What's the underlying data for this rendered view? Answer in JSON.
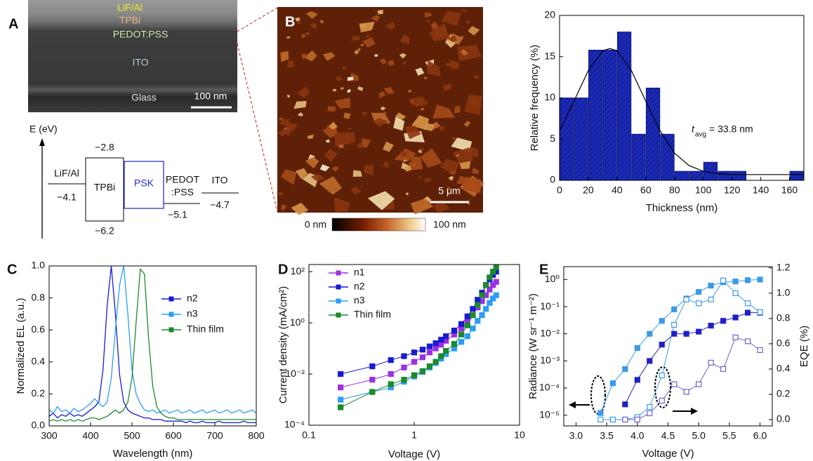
{
  "panel_labels": [
    "A",
    "B",
    "C",
    "D",
    "E"
  ],
  "panel_a": {
    "sem_layers": [
      "LiF/Al",
      "TPBi",
      "PEDOT:PSS",
      "ITO",
      "Glass"
    ],
    "scale_bar": "100 nm",
    "energy_diagram": {
      "axis_label": "E (eV)",
      "lif_al": "LiF/Al",
      "lif_al_level": "−4.1",
      "tpbi": "TPBi",
      "tpbi_lumo": "−2.8",
      "tpbi_homo": "−6.2",
      "psk": "PSK",
      "pedot_1": "PEDOT",
      "pedot_2": ":PSS",
      "pedot_level": "−5.1",
      "ito": "ITO",
      "ito_level": "−4.7"
    }
  },
  "panel_b": {
    "scale_bar": "5 μm",
    "colorbar_min": "0 nm",
    "colorbar_max": "100 nm"
  },
  "chart_data": [
    {
      "type": "histogram",
      "ylabel": "Relative frequency (%)",
      "xlabel": "Thickness (nm)",
      "bins": [
        0,
        10,
        20,
        30,
        40,
        50,
        60,
        70,
        80,
        90,
        100,
        110,
        120,
        130,
        140,
        150,
        160,
        170
      ],
      "values": [
        10,
        10,
        15.8,
        15.8,
        18,
        5.6,
        11.2,
        5.6,
        1.1,
        1.1,
        2.2,
        1.1,
        1.1,
        0,
        0,
        0,
        1.1
      ],
      "color": "#1c2ab8",
      "hatch": true,
      "xlim": [
        0,
        170
      ],
      "xticks": [
        0,
        20,
        40,
        60,
        80,
        100,
        120,
        140,
        160
      ],
      "ylim": [
        0,
        20
      ],
      "yticks": [
        0,
        5,
        10,
        15,
        20
      ],
      "fit": {
        "x": [
          0,
          10,
          20,
          30,
          35,
          40,
          50,
          60,
          70,
          80,
          90,
          100,
          110,
          120,
          130,
          140,
          150,
          160,
          170
        ],
        "values": [
          6.0,
          9.6,
          13.3,
          15.7,
          16.0,
          15.7,
          13.3,
          9.6,
          6.0,
          3.3,
          1.8,
          1.1,
          0.8,
          0.7,
          0.7,
          0.7,
          0.7,
          0.7,
          0.7
        ],
        "color": "#000000"
      },
      "annotation": {
        "symbol": "t",
        "subscript": "avg",
        "text": "= 33.8 nm"
      }
    },
    {
      "type": "line",
      "ylabel": "Normalized EL (a.u.)",
      "xlabel": "Wavelength (nm)",
      "x": [
        300,
        310,
        320,
        330,
        340,
        350,
        360,
        370,
        380,
        390,
        400,
        410,
        420,
        430,
        440,
        450,
        460,
        470,
        480,
        490,
        500,
        510,
        520,
        530,
        540,
        550,
        560,
        570,
        580,
        590,
        600,
        610,
        620,
        630,
        640,
        650,
        660,
        670,
        680,
        690,
        700,
        710,
        720,
        730,
        740,
        750,
        760,
        770,
        780,
        790,
        800
      ],
      "series": [
        {
          "name": "n2",
          "color": "#1a1ad0",
          "values": [
            0.06,
            0.08,
            0.05,
            0.07,
            0.06,
            0.08,
            0.06,
            0.07,
            0.06,
            0.08,
            0.1,
            0.12,
            0.15,
            0.35,
            0.75,
            1.0,
            0.7,
            0.32,
            0.15,
            0.1,
            0.08,
            0.07,
            0.06,
            0.05,
            0.05,
            0.04,
            0.04,
            0.04,
            0.03,
            0.03,
            0.03,
            0.03,
            0.03,
            0.02,
            0.03,
            0.02,
            0.02,
            0.03,
            0.02,
            0.02,
            0.02,
            0.03,
            0.02,
            0.02,
            0.02,
            0.02,
            0.02,
            0.03,
            0.02,
            0.02,
            0.02
          ]
        },
        {
          "name": "n3",
          "color": "#2a9df4",
          "values": [
            0.1,
            0.08,
            0.12,
            0.09,
            0.1,
            0.08,
            0.11,
            0.09,
            0.1,
            0.12,
            0.14,
            0.17,
            0.14,
            0.12,
            0.15,
            0.3,
            0.6,
            0.88,
            1.0,
            0.7,
            0.35,
            0.2,
            0.14,
            0.1,
            0.09,
            0.1,
            0.08,
            0.09,
            0.1,
            0.08,
            0.09,
            0.1,
            0.08,
            0.09,
            0.1,
            0.08,
            0.09,
            0.1,
            0.08,
            0.09,
            0.1,
            0.08,
            0.09,
            0.1,
            0.08,
            0.09,
            0.1,
            0.08,
            0.09,
            0.1,
            0.08
          ]
        },
        {
          "name": "Thin film",
          "color": "#1a8a2a",
          "values": [
            0.03,
            0.04,
            0.03,
            0.04,
            0.03,
            0.04,
            0.03,
            0.04,
            0.03,
            0.04,
            0.05,
            0.05,
            0.04,
            0.05,
            0.06,
            0.08,
            0.1,
            0.08,
            0.1,
            0.15,
            0.3,
            0.65,
            0.98,
            0.95,
            0.55,
            0.25,
            0.12,
            0.08,
            0.06,
            0.05,
            0.05,
            0.04,
            0.04,
            0.04,
            0.04,
            0.04,
            0.04,
            0.04,
            0.04,
            0.04,
            0.04,
            0.04,
            0.04,
            0.04,
            0.04,
            0.04,
            0.04,
            0.04,
            0.04,
            0.04,
            0.04
          ]
        }
      ],
      "xlim": [
        300,
        800
      ],
      "xticks": [
        300,
        400,
        500,
        600,
        700,
        800
      ],
      "ylim": [
        0,
        1
      ],
      "yticks": [
        {
          "value": 0,
          "label": "0.0"
        },
        0.2,
        0.4,
        0.6,
        0.8,
        {
          "value": 1,
          "label": "1.0"
        }
      ],
      "legend": "upper right"
    },
    {
      "type": "line",
      "ylabel": "Current density (mA/cm²)",
      "xlabel": "Voltage (V)",
      "xscale": "log",
      "yscale": "log",
      "marker": "square",
      "x": [
        0.2,
        0.4,
        0.6,
        0.8,
        1,
        1.2,
        1.4,
        1.6,
        1.8,
        2,
        2.4,
        2.8,
        3.2,
        3.6,
        4,
        4.4,
        4.8,
        5.2,
        5.6,
        6
      ],
      "series": [
        {
          "name": "n1",
          "color": "#9b30e0",
          "values": [
            0.003,
            0.006,
            0.01,
            0.018,
            0.03,
            0.045,
            0.07,
            0.1,
            0.14,
            0.2,
            0.35,
            0.6,
            1.1,
            2,
            4,
            7,
            12,
            20,
            30,
            40
          ]
        },
        {
          "name": "n2",
          "color": "#1a1ad0",
          "values": [
            0.01,
            0.02,
            0.035,
            0.05,
            0.07,
            0.09,
            0.12,
            0.16,
            0.22,
            0.3,
            0.5,
            0.9,
            1.8,
            3.5,
            8,
            15,
            30,
            50,
            75,
            100
          ]
        },
        {
          "name": "n3",
          "color": "#2a9df4",
          "values": [
            0.001,
            0.002,
            0.003,
            0.005,
            0.008,
            0.012,
            0.018,
            0.027,
            0.04,
            0.06,
            0.1,
            0.18,
            0.3,
            0.6,
            1.2,
            2,
            3.5,
            6,
            9,
            12
          ]
        },
        {
          "name": "Thin film",
          "color": "#1a8a2a",
          "values": [
            0.0005,
            0.002,
            0.004,
            0.006,
            0.009,
            0.013,
            0.02,
            0.03,
            0.05,
            0.08,
            0.15,
            0.35,
            0.8,
            2,
            5,
            12,
            30,
            60,
            100,
            150
          ]
        }
      ],
      "xlim": [
        0.1,
        10
      ],
      "xticks": [
        0.1,
        1,
        10
      ],
      "ylim": [
        0.0001,
        190
      ],
      "yticks": [
        {
          "value": 0.0001,
          "label": "10⁻⁴"
        },
        {
          "value": 0.01,
          "label": "10⁻²"
        },
        {
          "value": 1,
          "label": "10⁰"
        },
        {
          "value": 100,
          "label": "10²"
        }
      ],
      "legend": "upper left"
    },
    {
      "type": "line",
      "ylabel": "Radiance (W sr⁻¹ m⁻²)",
      "y2label": "EQE (%)",
      "xlabel": "Voltage (V)",
      "yscale": "log",
      "marker": "square",
      "x": [
        3.4,
        3.6,
        3.8,
        4.0,
        4.2,
        4.4,
        4.6,
        4.8,
        5.0,
        5.2,
        5.4,
        5.6,
        5.8,
        6.0
      ],
      "series": [
        {
          "color": "#3a9ae8",
          "filled": true,
          "values": [
            1.2e-05,
            0.00015,
            0.0005,
            0.003,
            0.01,
            0.03,
            0.08,
            0.2,
            0.35,
            0.6,
            0.8,
            0.85,
            0.95,
            1.0
          ]
        },
        {
          "color": "#2020c8",
          "filled": true,
          "values": [
            null,
            null,
            2.5e-05,
            0.0002,
            0.001,
            0.004,
            0.01,
            0.01,
            0.012,
            0.02,
            0.03,
            0.04,
            0.06,
            0.06
          ]
        },
        {
          "color": "#3a9ae8",
          "filled": false,
          "axis": "y2",
          "values": [
            0,
            0,
            0,
            0.02,
            0.1,
            0.35,
            0.75,
            0.95,
            0.92,
            0.95,
            1.1,
            1.0,
            0.92,
            0.85
          ]
        },
        {
          "color": "#7060d0",
          "filled": false,
          "axis": "y2",
          "values": [
            null,
            null,
            0,
            0,
            0.05,
            0.15,
            0.28,
            0.22,
            0.28,
            0.45,
            0.4,
            0.65,
            0.62,
            0.55
          ]
        }
      ],
      "xlim": [
        2.8,
        6.2
      ],
      "xticks": [
        {
          "value": 3,
          "label": "3.0"
        },
        3.5,
        {
          "value": 4,
          "label": "4.0"
        },
        4.5,
        {
          "value": 5,
          "label": "5.0"
        },
        5.5,
        {
          "value": 6,
          "label": "6.0"
        }
      ],
      "ylim": [
        4e-06,
        3
      ],
      "yticks": [
        {
          "value": 1e-05,
          "label": "10⁻⁵"
        },
        {
          "value": 0.0001,
          "label": "10⁻⁴"
        },
        {
          "value": 0.001,
          "label": "10⁻³"
        },
        {
          "value": 0.01,
          "label": "10⁻²"
        },
        {
          "value": 0.1,
          "label": "10⁻¹"
        },
        {
          "value": 1,
          "label": "10⁰"
        }
      ],
      "y2lim": [
        -0.05,
        1.21
      ],
      "y2ticks": [
        {
          "value": 0,
          "label": "0.0"
        },
        0.2,
        0.4,
        0.6,
        0.8,
        {
          "value": 1,
          "label": "1.0"
        },
        1.2
      ]
    }
  ]
}
